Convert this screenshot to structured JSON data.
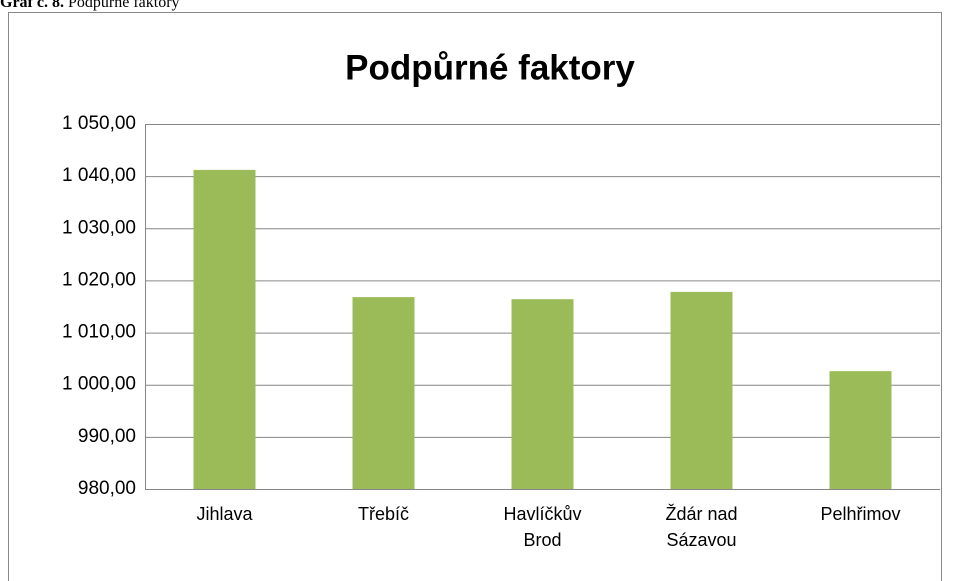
{
  "caption": {
    "label": "Graf č. 8.",
    "text": "Podpůrné faktory"
  },
  "chart_data": {
    "type": "bar",
    "title": "Podpůrné faktory",
    "categories": [
      "Jihlava",
      "Třebíč",
      "Havlíčkův Brod",
      "Ždár nad Sázavou",
      "Pelhřimov"
    ],
    "values": [
      1041.2,
      1016.8,
      1016.4,
      1017.8,
      1002.6
    ],
    "color": "#9bbb59",
    "ylim": [
      980,
      1050
    ],
    "yticks": [
      {
        "value": 980,
        "label": "980,00"
      },
      {
        "value": 990,
        "label": "990,00"
      },
      {
        "value": 1000,
        "label": "1 000,00"
      },
      {
        "value": 1010,
        "label": "1 010,00"
      },
      {
        "value": 1020,
        "label": "1 020,00"
      },
      {
        "value": 1030,
        "label": "1 030,00"
      },
      {
        "value": 1040,
        "label": "1 040,00"
      },
      {
        "value": 1050,
        "label": "1 050,00"
      }
    ],
    "grid": true
  }
}
